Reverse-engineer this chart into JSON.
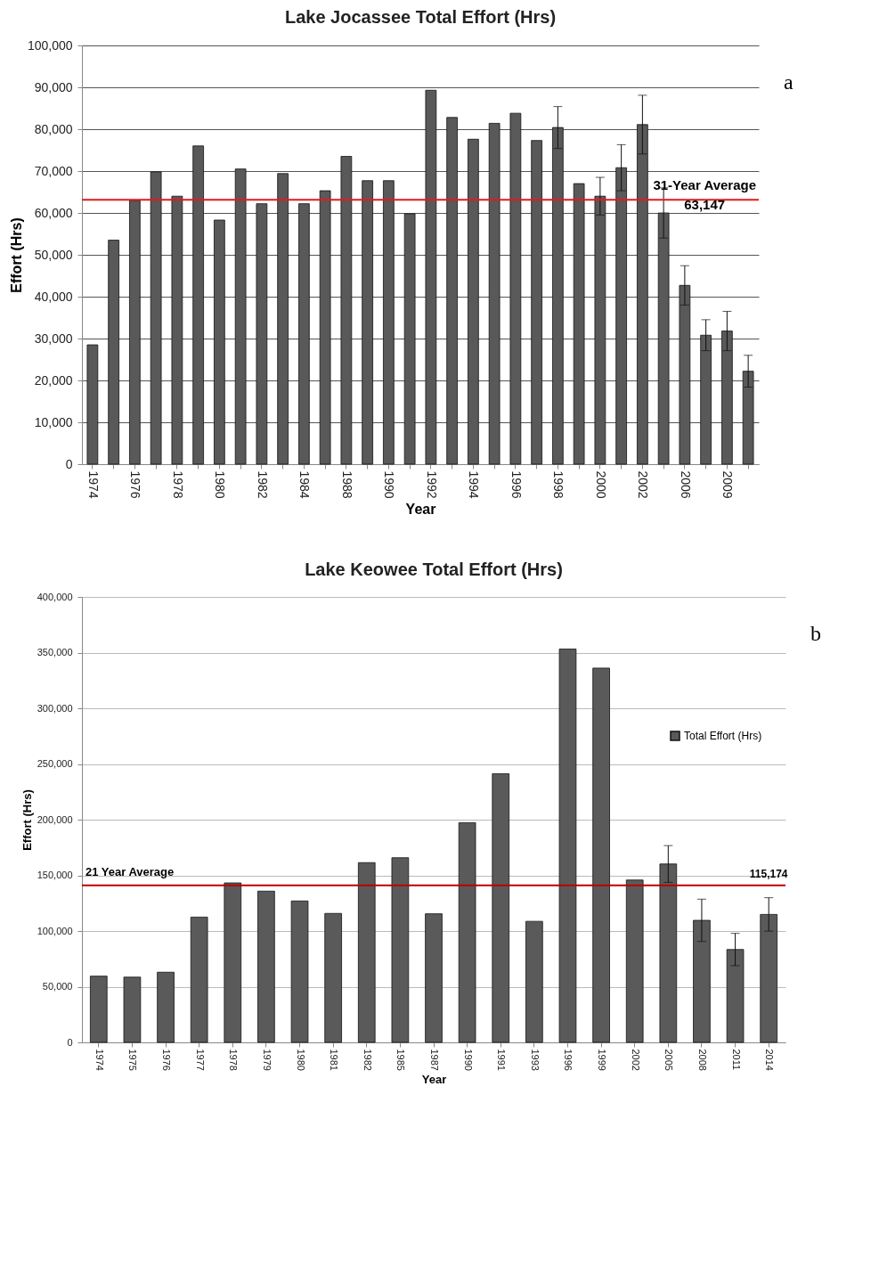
{
  "chart_data": [
    {
      "type": "bar",
      "title": "Lake Jocassee Total Effort (Hrs)",
      "xlabel": "Year",
      "ylabel": "Effort (Hrs)",
      "categories": [
        "1974",
        null,
        "1976",
        null,
        "1978",
        null,
        "1980",
        null,
        "1982",
        null,
        "1984",
        null,
        "1988",
        null,
        "1990",
        null,
        "1992",
        null,
        "1994",
        null,
        "1996",
        null,
        "1998",
        null,
        "2000",
        null,
        "2002",
        null,
        "2006",
        null,
        "2009",
        null
      ],
      "series": [
        {
          "color": "#595959",
          "values": [
            28500,
            53500,
            63000,
            69800,
            64000,
            76000,
            58300,
            70500,
            62200,
            69400,
            62200,
            65300,
            73500,
            67700,
            67700,
            59800,
            89300,
            82800,
            77600,
            81400,
            83800,
            77300,
            80400,
            67000,
            64000,
            70800,
            81100,
            60000,
            42700,
            30800,
            31800,
            22200
          ],
          "errors": [
            null,
            null,
            null,
            null,
            null,
            null,
            null,
            null,
            null,
            null,
            null,
            null,
            null,
            null,
            null,
            null,
            null,
            null,
            null,
            null,
            null,
            null,
            5000,
            null,
            4500,
            5500,
            7000,
            6000,
            4700,
            3700,
            4700,
            3800
          ]
        }
      ],
      "ylim": [
        0,
        100000
      ],
      "yticks": [
        0,
        {
          "value": 10000,
          "label": "10,000"
        },
        {
          "value": 20000,
          "label": "20,000"
        },
        {
          "value": 30000,
          "label": "30,000"
        },
        {
          "value": 40000,
          "label": "40,000"
        },
        {
          "value": 50000,
          "label": "50,000"
        },
        {
          "value": 60000,
          "label": "60,000"
        },
        {
          "value": 70000,
          "label": "70,000"
        },
        {
          "value": 80000,
          "label": "80,000"
        },
        {
          "value": 90000,
          "label": "90,000"
        },
        {
          "value": 100000,
          "label": "100,000"
        }
      ],
      "grid": "y",
      "ref_lines": [
        {
          "axis": "y",
          "value": 63147,
          "label": "31-Year Average\n63,147",
          "color": "#e31a1c"
        }
      ],
      "annotations": [
        "a"
      ]
    },
    {
      "type": "bar",
      "title": "Lake Keowee Total Effort (Hrs)",
      "xlabel": "Year",
      "ylabel": "Effort (Hrs)",
      "categories": [
        "1974",
        "1975",
        "1976",
        "1977",
        "1978",
        "1979",
        "1980",
        "1981",
        "1982",
        "1985",
        "1987",
        "1990",
        "1991",
        "1993",
        "1996",
        "1999",
        "2002",
        "2005",
        "2008",
        "2011",
        "2014"
      ],
      "series": [
        {
          "name": "Total Effort (Hrs)",
          "color": "#5a5a5a",
          "values": [
            59500,
            58600,
            63000,
            112500,
            143200,
            135800,
            127000,
            115800,
            161400,
            165800,
            115500,
            197300,
            241200,
            108700,
            353200,
            336100,
            145800,
            160200,
            109600,
            83400,
            114900
          ],
          "errors": [
            null,
            null,
            null,
            null,
            null,
            null,
            null,
            null,
            null,
            null,
            null,
            null,
            null,
            null,
            null,
            null,
            null,
            16500,
            19000,
            14500,
            15000
          ]
        }
      ],
      "ylim": [
        0,
        400000
      ],
      "yticks": [
        0,
        {
          "value": 50000,
          "label": "50,000"
        },
        {
          "value": 100000,
          "label": "100,000"
        },
        {
          "value": 150000,
          "label": "150,000"
        },
        {
          "value": 200000,
          "label": "200,000"
        },
        {
          "value": 250000,
          "label": "250,000"
        },
        {
          "value": 300000,
          "label": "300,000"
        },
        {
          "value": 350000,
          "label": "350,000"
        },
        {
          "value": 400000,
          "label": "400,000"
        }
      ],
      "grid": "y",
      "legend": "right",
      "ref_lines": [
        {
          "axis": "y",
          "value": 141000,
          "label": "21 Year Average",
          "color": "#c00000"
        }
      ],
      "annotations": [
        "b",
        {
          "text": "115,174",
          "x": "2014",
          "y": 141000
        }
      ]
    }
  ]
}
